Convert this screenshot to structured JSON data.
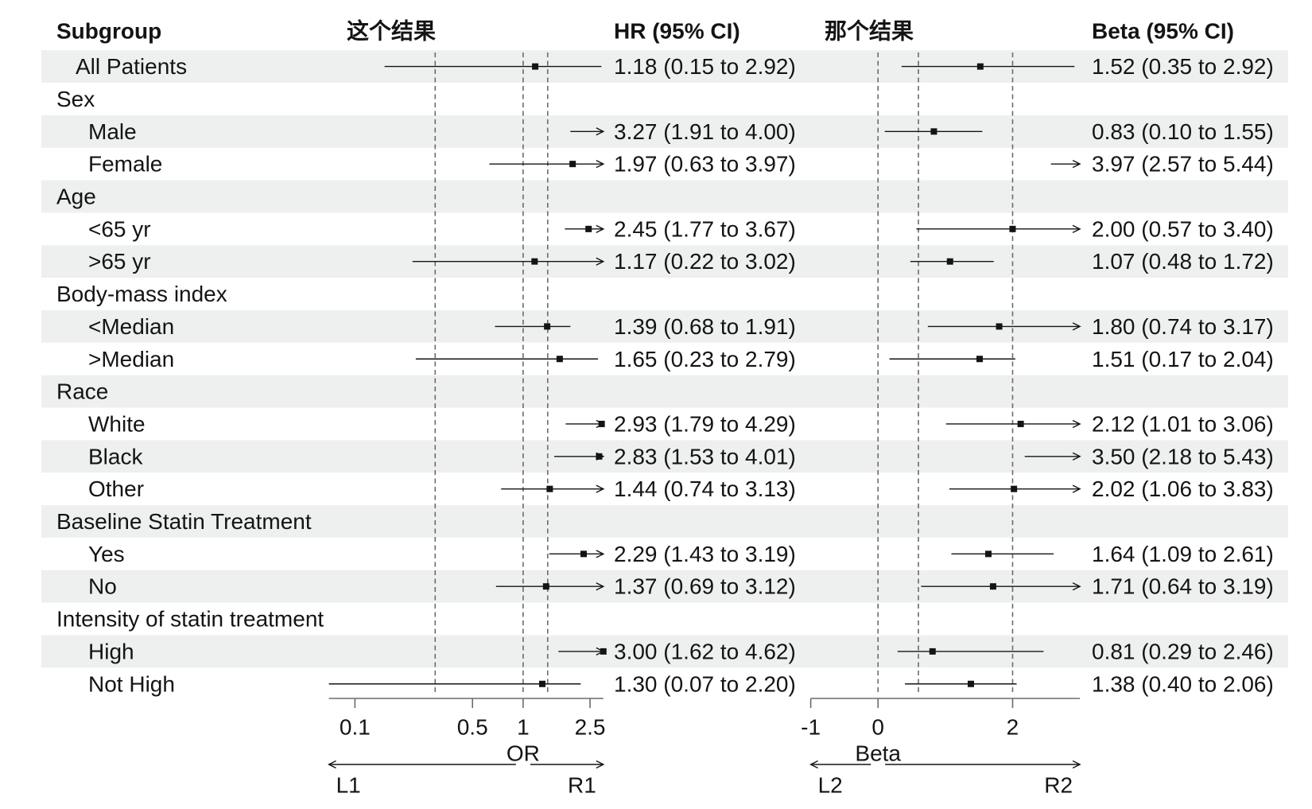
{
  "chart_data": {
    "type": "table",
    "columns": {
      "subgroup": "Subgroup",
      "hr_plot": "这个结果",
      "hr": "HR (95% CI)",
      "beta_plot": "那个结果",
      "beta": "Beta (95% CI)"
    },
    "overall": {
      "label": "All Patients",
      "hr": {
        "est": 1.18,
        "lower": 0.15,
        "upper": 2.92,
        "text": "1.18 (0.15 to 2.92)"
      },
      "beta": {
        "est": 1.52,
        "lower": 0.35,
        "upper": 2.92,
        "text": "1.52 (0.35 to 2.92)"
      }
    },
    "groups": [
      {
        "label": "Sex",
        "items": [
          {
            "label": "Male",
            "hr": {
              "est": 3.27,
              "lower": 1.91,
              "upper": 4.0,
              "text": "3.27 (1.91 to 4.00)"
            },
            "beta": {
              "est": 0.83,
              "lower": 0.1,
              "upper": 1.55,
              "text": "0.83 (0.10 to 1.55)"
            }
          },
          {
            "label": "Female",
            "hr": {
              "est": 1.97,
              "lower": 0.63,
              "upper": 3.97,
              "text": "1.97 (0.63 to 3.97)"
            },
            "beta": {
              "est": 3.97,
              "lower": 2.57,
              "upper": 5.44,
              "text": "3.97 (2.57 to 5.44)"
            }
          }
        ]
      },
      {
        "label": "Age",
        "items": [
          {
            "label": "<65 yr",
            "hr": {
              "est": 2.45,
              "lower": 1.77,
              "upper": 3.67,
              "text": "2.45 (1.77 to 3.67)"
            },
            "beta": {
              "est": 2.0,
              "lower": 0.57,
              "upper": 3.4,
              "text": "2.00 (0.57 to 3.40)"
            }
          },
          {
            "label": ">65 yr",
            "hr": {
              "est": 1.17,
              "lower": 0.22,
              "upper": 3.02,
              "text": "1.17 (0.22 to 3.02)"
            },
            "beta": {
              "est": 1.07,
              "lower": 0.48,
              "upper": 1.72,
              "text": "1.07 (0.48 to 1.72)"
            }
          }
        ]
      },
      {
        "label": "Body-mass index",
        "items": [
          {
            "label": "<Median",
            "hr": {
              "est": 1.39,
              "lower": 0.68,
              "upper": 1.91,
              "text": "1.39 (0.68 to 1.91)"
            },
            "beta": {
              "est": 1.8,
              "lower": 0.74,
              "upper": 3.17,
              "text": "1.80 (0.74 to 3.17)"
            }
          },
          {
            "label": ">Median",
            "hr": {
              "est": 1.65,
              "lower": 0.23,
              "upper": 2.79,
              "text": "1.65 (0.23 to 2.79)"
            },
            "beta": {
              "est": 1.51,
              "lower": 0.17,
              "upper": 2.04,
              "text": "1.51 (0.17 to 2.04)"
            }
          }
        ]
      },
      {
        "label": "Race",
        "items": [
          {
            "label": "White",
            "hr": {
              "est": 2.93,
              "lower": 1.79,
              "upper": 4.29,
              "text": "2.93 (1.79 to 4.29)"
            },
            "beta": {
              "est": 2.12,
              "lower": 1.01,
              "upper": 3.06,
              "text": "2.12 (1.01 to 3.06)"
            }
          },
          {
            "label": "Black",
            "hr": {
              "est": 2.83,
              "lower": 1.53,
              "upper": 4.01,
              "text": "2.83 (1.53 to 4.01)"
            },
            "beta": {
              "est": 3.5,
              "lower": 2.18,
              "upper": 5.43,
              "text": "3.50 (2.18 to 5.43)"
            }
          },
          {
            "label": "Other",
            "hr": {
              "est": 1.44,
              "lower": 0.74,
              "upper": 3.13,
              "text": "1.44 (0.74 to 3.13)"
            },
            "beta": {
              "est": 2.02,
              "lower": 1.06,
              "upper": 3.83,
              "text": "2.02 (1.06 to 3.83)"
            }
          }
        ]
      },
      {
        "label": "Baseline Statin Treatment",
        "items": [
          {
            "label": "Yes",
            "hr": {
              "est": 2.29,
              "lower": 1.43,
              "upper": 3.19,
              "text": "2.29 (1.43 to 3.19)"
            },
            "beta": {
              "est": 1.64,
              "lower": 1.09,
              "upper": 2.61,
              "text": "1.64 (1.09 to 2.61)"
            }
          },
          {
            "label": "No",
            "hr": {
              "est": 1.37,
              "lower": 0.69,
              "upper": 3.12,
              "text": "1.37 (0.69 to 3.12)"
            },
            "beta": {
              "est": 1.71,
              "lower": 0.64,
              "upper": 3.19,
              "text": "1.71 (0.64 to 3.19)"
            }
          }
        ]
      },
      {
        "label": "Intensity of statin treatment",
        "items": [
          {
            "label": "High",
            "hr": {
              "est": 3.0,
              "lower": 1.62,
              "upper": 4.62,
              "text": "3.00 (1.62 to 4.62)"
            },
            "beta": {
              "est": 0.81,
              "lower": 0.29,
              "upper": 2.46,
              "text": "0.81 (0.29 to 2.46)"
            }
          },
          {
            "label": "Not High",
            "hr": {
              "est": 1.3,
              "lower": 0.07,
              "upper": 2.2,
              "text": "1.30 (0.07 to 2.20)"
            },
            "beta": {
              "est": 1.38,
              "lower": 0.4,
              "upper": 2.06,
              "text": "1.38 (0.40 to 2.06)"
            }
          }
        ]
      }
    ],
    "plots": {
      "hr": {
        "type": "scatter",
        "xlabel": "OR",
        "scale": "log",
        "xlim": [
          0.07,
          3
        ],
        "ticks": [
          0.1,
          0.5,
          1,
          2.5
        ],
        "tick_labels": [
          "0.1",
          "0.5",
          "1",
          "2.5"
        ],
        "reference_lines": [
          0.3,
          1,
          1.4
        ],
        "arrow_labels": [
          "L1",
          "R1"
        ]
      },
      "beta": {
        "type": "scatter",
        "xlabel": "Beta",
        "scale": "linear",
        "xlim": [
          -1,
          3
        ],
        "ticks": [
          -1,
          0,
          2
        ],
        "tick_labels": [
          "-1",
          "0",
          "2"
        ],
        "reference_lines": [
          0,
          0.6,
          2
        ],
        "arrow_labels": [
          "L2",
          "R2"
        ]
      }
    },
    "grid": false,
    "colors": {
      "stripe": "#eef0ef",
      "ink": "#141414",
      "reference_line": "#6b6b6b",
      "axis": "#6b6b6b"
    }
  }
}
